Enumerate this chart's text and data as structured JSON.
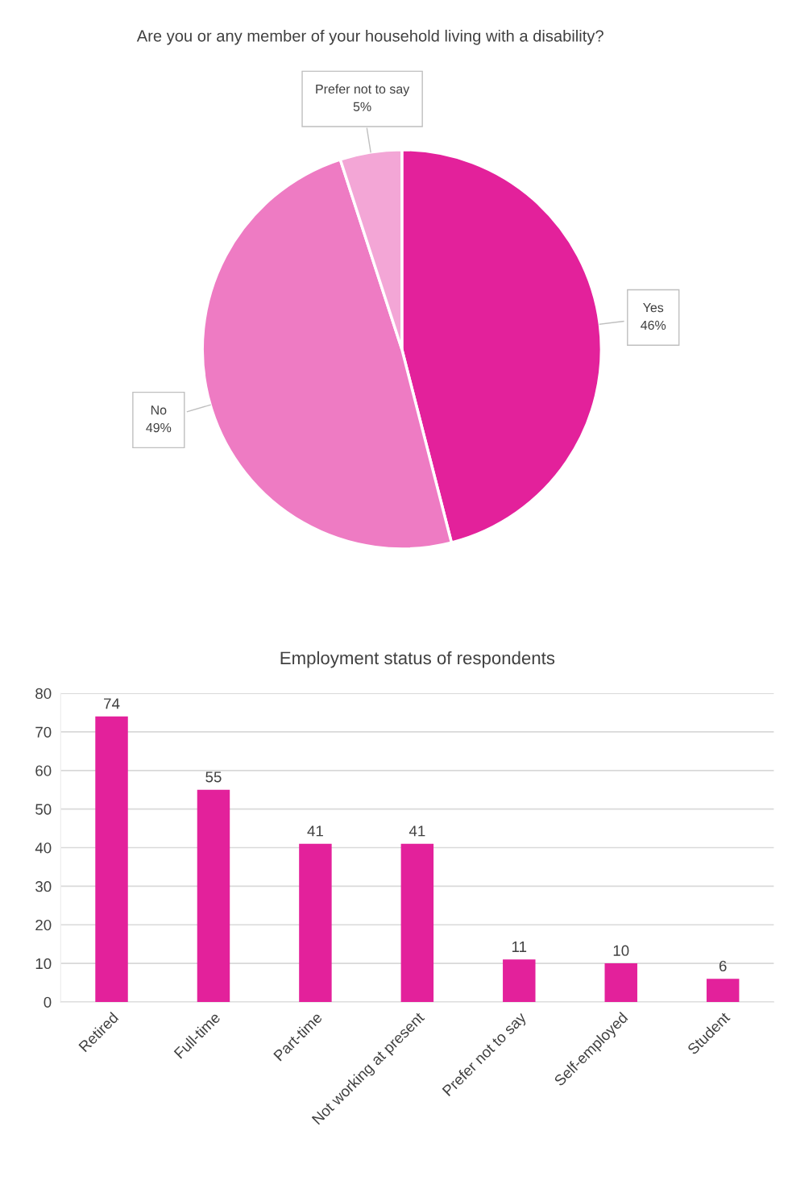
{
  "chart_data": [
    {
      "type": "pie",
      "title": "Are you or any member of your household living with a disability?",
      "categories": [
        "Yes",
        "No",
        "Prefer not to say"
      ],
      "values": [
        46,
        49,
        5
      ],
      "colors": [
        "#e3219b",
        "#ee7bc3",
        "#f3a6d6"
      ],
      "value_labels": [
        "46%",
        "49%",
        "5%"
      ]
    },
    {
      "type": "bar",
      "title": "Employment status of respondents",
      "categories": [
        "Retired",
        "Full-time",
        "Part-time",
        "Not working at present",
        "Prefer not to say",
        "Self-employed",
        "Student"
      ],
      "values": [
        74,
        55,
        41,
        41,
        11,
        10,
        6
      ],
      "color": "#e3219b",
      "ylim": [
        0,
        80
      ],
      "yticks": [
        0,
        10,
        20,
        30,
        40,
        50,
        60,
        70,
        80
      ],
      "grid": "y",
      "data_labels": true
    }
  ]
}
